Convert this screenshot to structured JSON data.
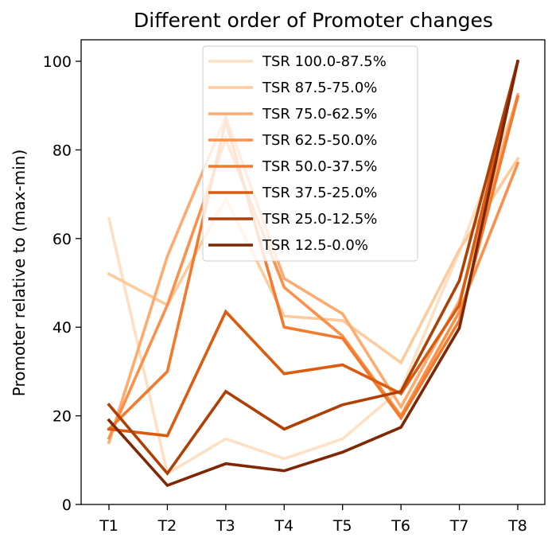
{
  "chart_data": {
    "type": "line",
    "title": "Different order of Promoter changes",
    "xlabel": "",
    "ylabel": "Promoter relative to (max-min)",
    "categories": [
      "T1",
      "T2",
      "T3",
      "T4",
      "T5",
      "T6",
      "T7",
      "T8"
    ],
    "yticks": [
      0,
      20,
      40,
      60,
      80,
      100
    ],
    "ylim": [
      0,
      100
    ],
    "grid": false,
    "legend_position": "top-center",
    "series": [
      {
        "name": "TSR 100.0-87.5%",
        "color": "#fee0c4",
        "values": [
          64.5,
          7.0,
          14.8,
          10.3,
          14.8,
          26.0,
          57.0,
          91.5
        ]
      },
      {
        "name": "TSR 87.5-75.0%",
        "color": "#fdcb9e",
        "values": [
          52.0,
          45.0,
          69.0,
          42.5,
          41.5,
          32.0,
          57.5,
          78.0
        ]
      },
      {
        "name": "TSR 75.0-62.5%",
        "color": "#fdab6e",
        "values": [
          14.0,
          56.0,
          87.5,
          51.0,
          43.0,
          22.0,
          46.0,
          92.5
        ]
      },
      {
        "name": "TSR 62.5-50.0%",
        "color": "#fc9048",
        "values": [
          15.0,
          45.0,
          82.5,
          49.0,
          38.0,
          20.0,
          43.5,
          77.0
        ]
      },
      {
        "name": "TSR 50.0-37.5%",
        "color": "#f37a2d",
        "values": [
          17.0,
          30.0,
          86.5,
          40.0,
          37.5,
          19.5,
          41.5,
          92.0
        ]
      },
      {
        "name": "TSR 37.5-25.0%",
        "color": "#dc5b0f",
        "values": [
          17.0,
          15.5,
          43.5,
          29.5,
          31.5,
          25.0,
          45.0,
          100.0
        ]
      },
      {
        "name": "TSR 25.0-12.5%",
        "color": "#b03f04",
        "values": [
          22.5,
          7.0,
          25.5,
          17.0,
          22.5,
          25.5,
          50.5,
          100.0
        ]
      },
      {
        "name": "TSR 12.5-0.0%",
        "color": "#7f2704",
        "values": [
          19.0,
          4.3,
          9.2,
          7.6,
          11.8,
          17.4,
          39.8,
          100.0
        ]
      }
    ]
  }
}
